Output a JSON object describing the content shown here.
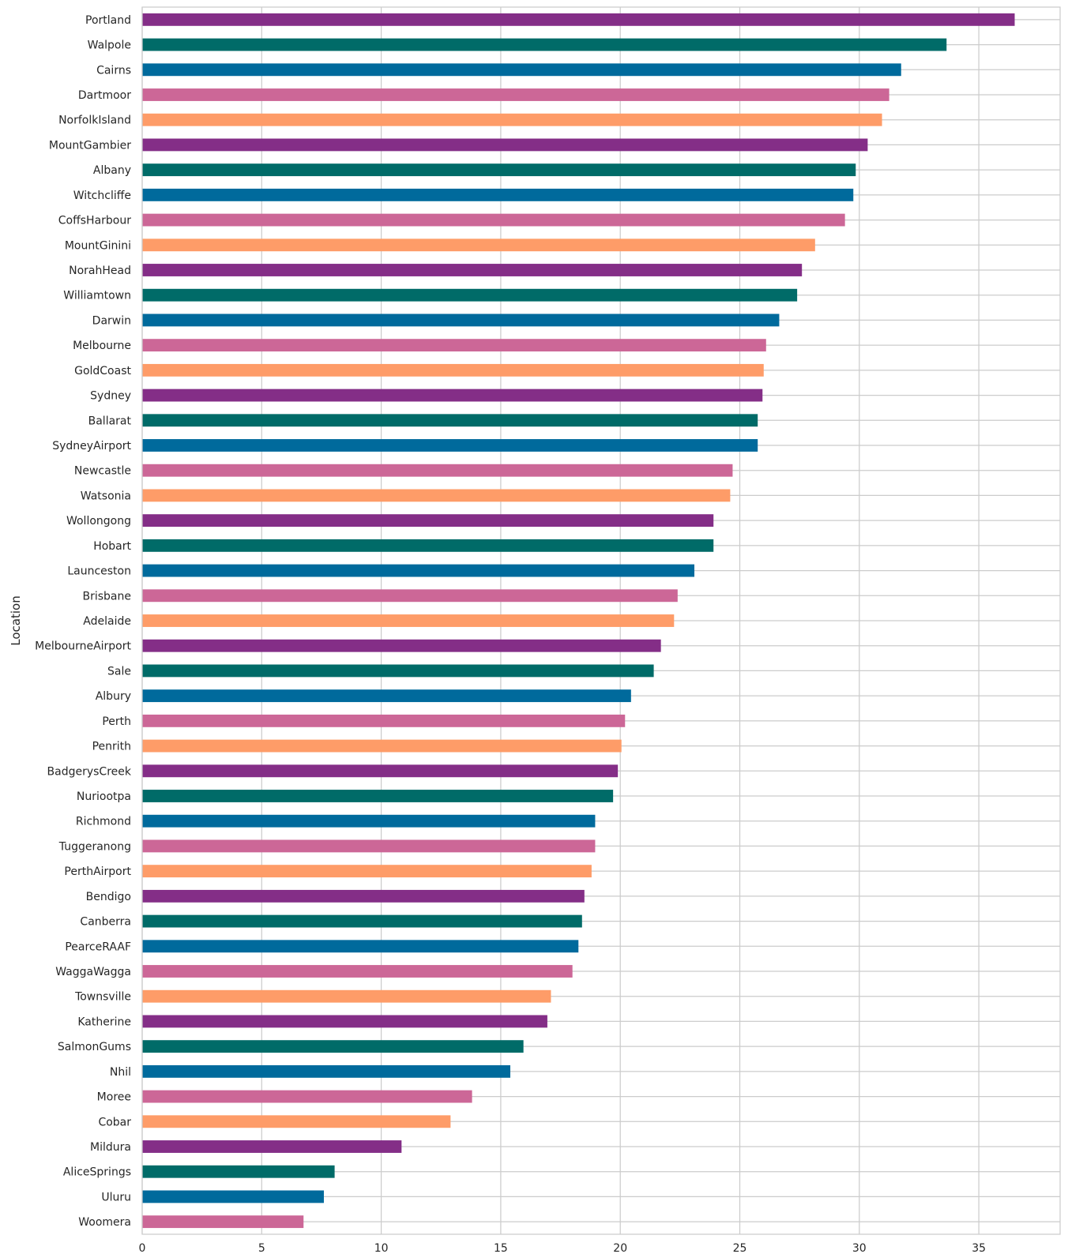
{
  "chart_data": {
    "type": "bar",
    "orientation": "horizontal",
    "title": "",
    "xlabel": "",
    "ylabel": "Location",
    "xlim": [
      0,
      38.4
    ],
    "xticks": [
      0,
      5,
      10,
      15,
      20,
      25,
      30,
      35
    ],
    "grid": true,
    "palette": [
      "#842e87",
      "#006b68",
      "#006a9c",
      "#cc6797",
      "#fe9c68"
    ],
    "categories": [
      "Portland",
      "Walpole",
      "Cairns",
      "Dartmoor",
      "NorfolkIsland",
      "MountGambier",
      "Albany",
      "Witchcliffe",
      "CoffsHarbour",
      "MountGinini",
      "NorahHead",
      "Williamtown",
      "Darwin",
      "Melbourne",
      "GoldCoast",
      "Sydney",
      "Ballarat",
      "SydneyAirport",
      "Newcastle",
      "Watsonia",
      "Wollongong",
      "Hobart",
      "Launceston",
      "Brisbane",
      "Adelaide",
      "MelbourneAirport",
      "Sale",
      "Albury",
      "Perth",
      "Penrith",
      "BadgerysCreek",
      "Nuriootpa",
      "Richmond",
      "Tuggeranong",
      "PerthAirport",
      "Bendigo",
      "Canberra",
      "PearceRAAF",
      "WaggaWagga",
      "Townsville",
      "Katherine",
      "SalmonGums",
      "Nhil",
      "Moree",
      "Cobar",
      "Mildura",
      "AliceSprings",
      "Uluru",
      "Woomera"
    ],
    "values": [
      36.5,
      33.65,
      31.75,
      31.25,
      30.95,
      30.35,
      29.85,
      29.75,
      29.4,
      28.15,
      27.6,
      27.4,
      26.65,
      26.1,
      26.0,
      25.95,
      25.75,
      25.75,
      24.7,
      24.6,
      23.9,
      23.9,
      23.1,
      22.4,
      22.25,
      21.7,
      21.4,
      20.45,
      20.2,
      20.05,
      19.9,
      19.7,
      18.95,
      18.95,
      18.8,
      18.5,
      18.4,
      18.25,
      18.0,
      17.1,
      16.95,
      15.95,
      15.4,
      13.8,
      12.9,
      10.85,
      8.05,
      7.6,
      6.75
    ]
  }
}
